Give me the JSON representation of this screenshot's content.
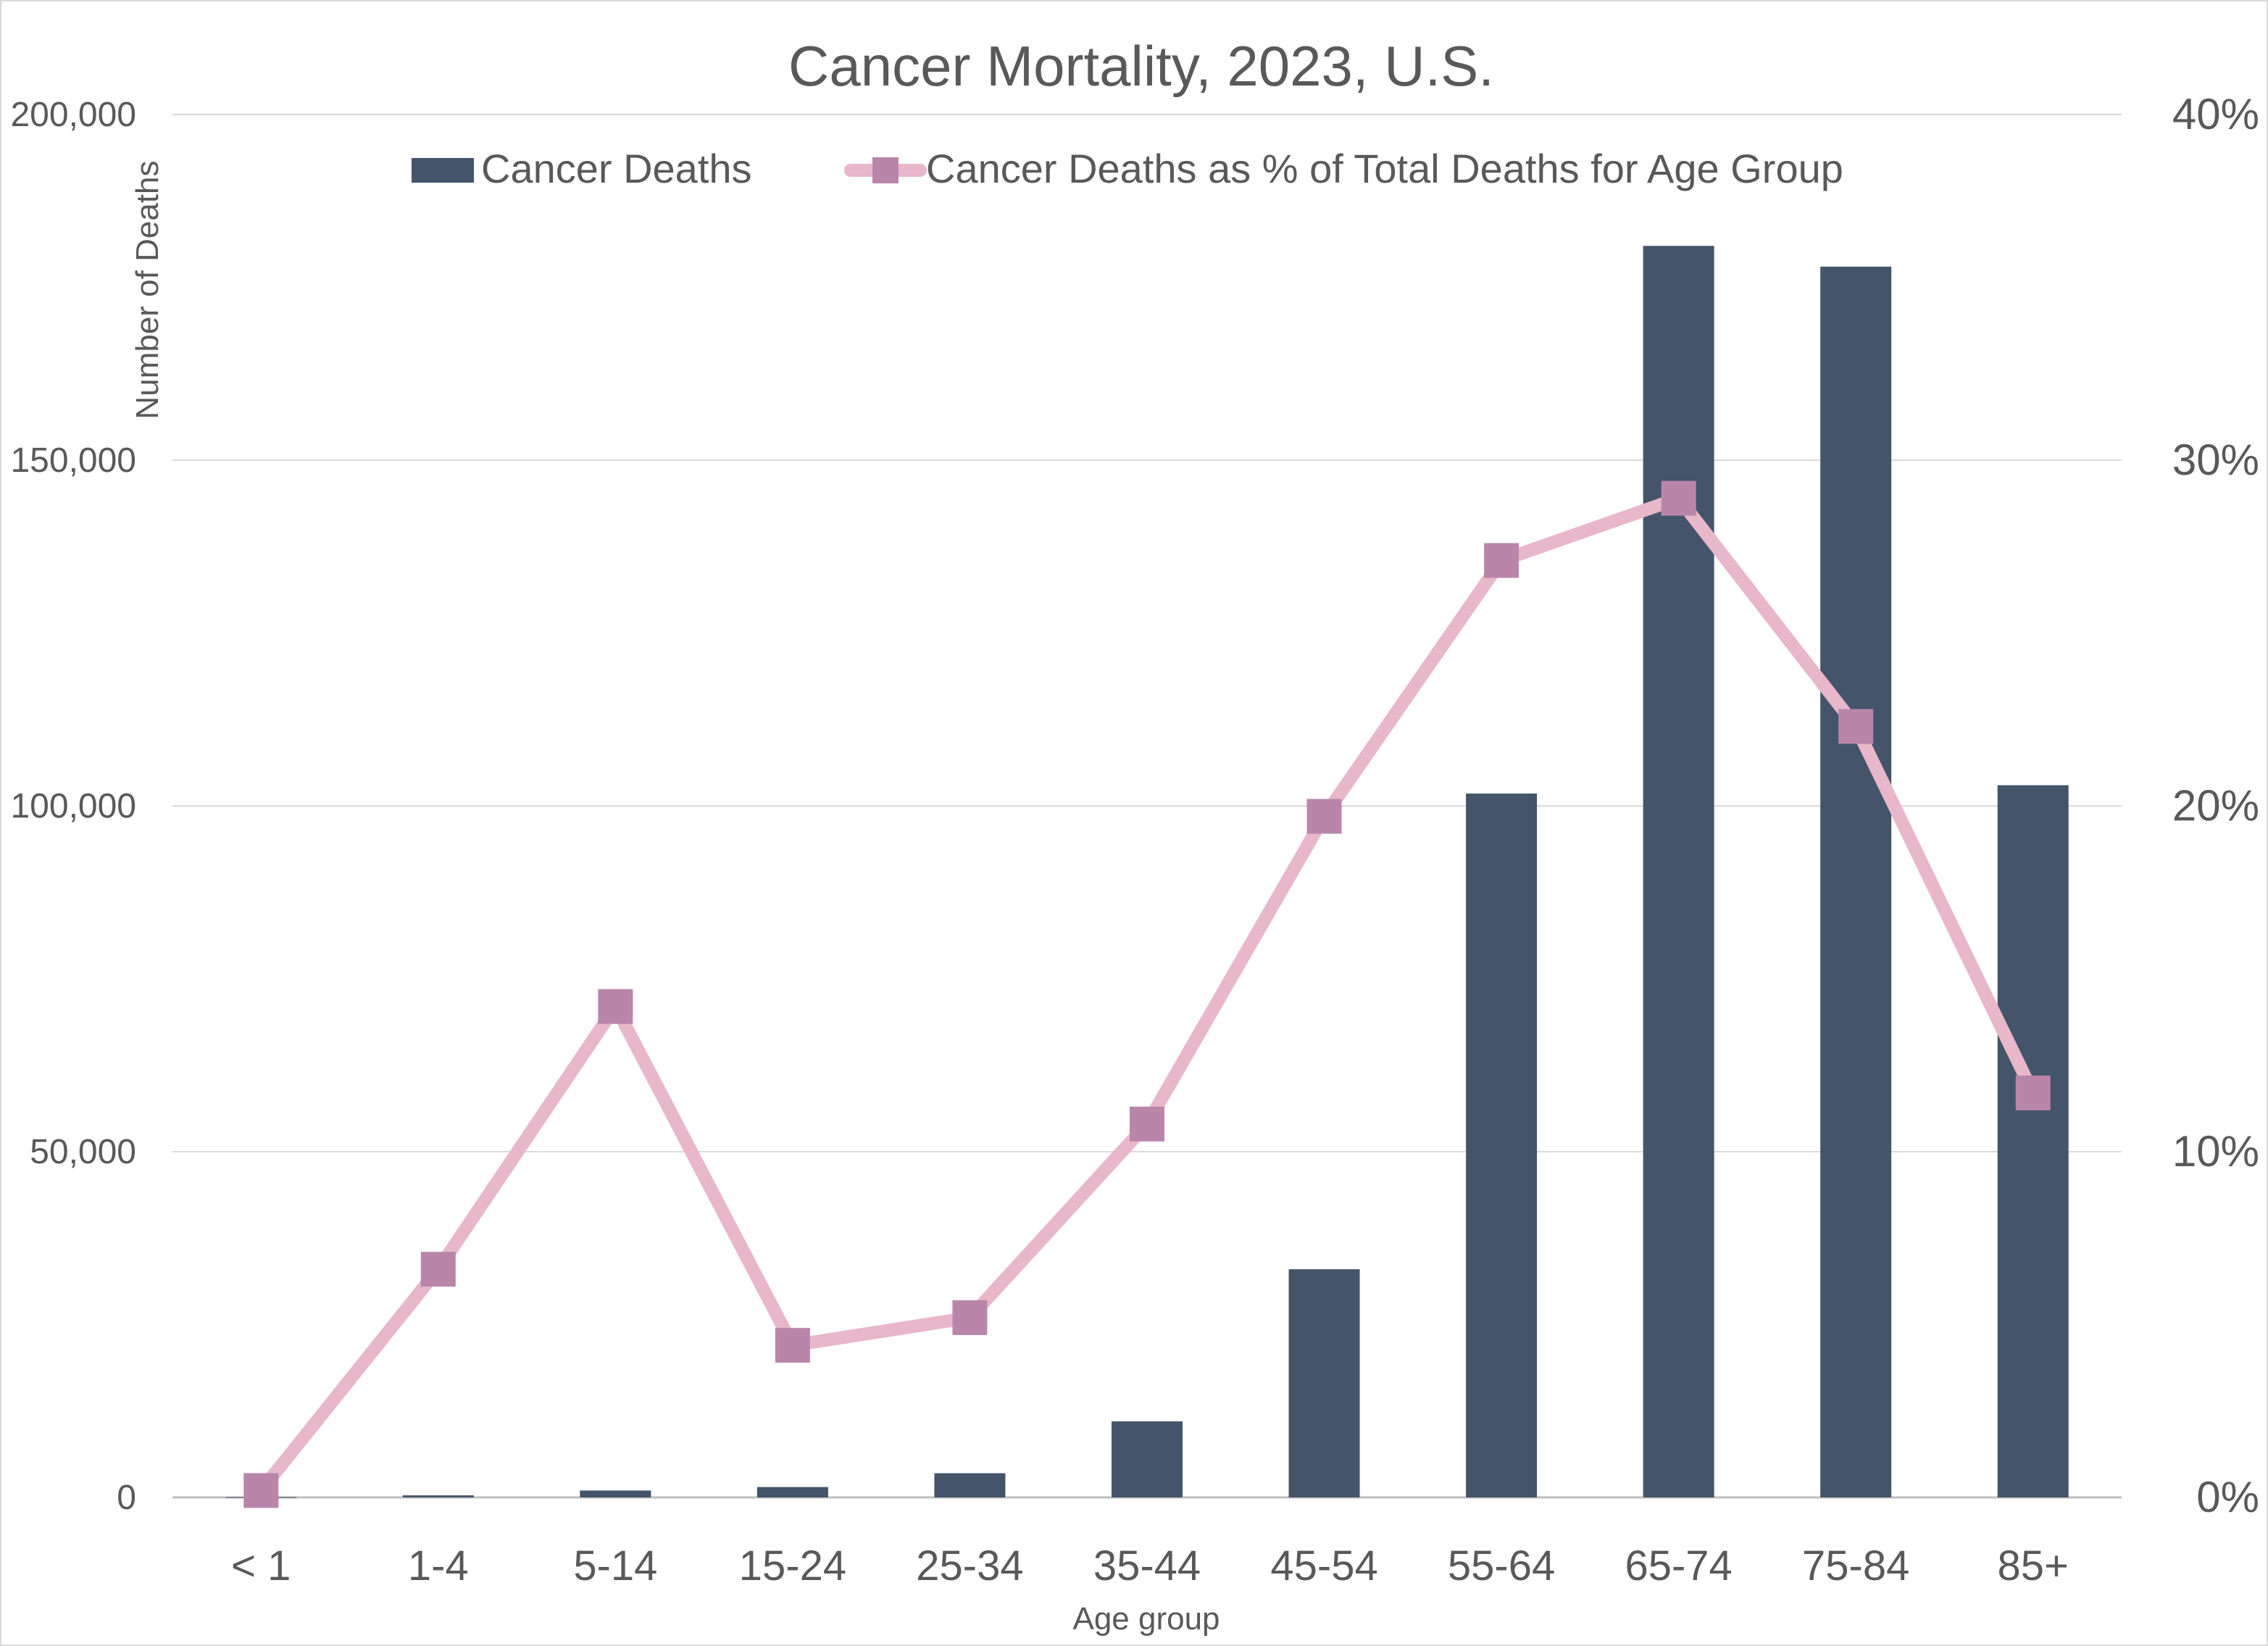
{
  "chart_data": {
    "type": "bar",
    "title": "Cancer Mortality, 2023, U.S.",
    "xlabel": "Age group",
    "ylabel": "Number of Deaths",
    "categories": [
      "< 1",
      "1-4",
      "5-14",
      "15-24",
      "25-34",
      "35-44",
      "45-54",
      "55-64",
      "65-74",
      "75-84",
      "85+"
    ],
    "y_axis": {
      "min": 0,
      "max": 200000,
      "ticks": [
        0,
        50000,
        100000,
        150000,
        200000
      ],
      "tick_labels": [
        "0",
        "50,000",
        "100,000",
        "150,000",
        "200,000"
      ]
    },
    "y2_axis": {
      "min": 0,
      "max": 40,
      "ticks": [
        0,
        10,
        20,
        30,
        40
      ],
      "tick_labels": [
        "0%",
        "10%",
        "20%",
        "30%",
        "40%"
      ]
    },
    "series": [
      {
        "name": "Cancer Deaths",
        "type": "bar",
        "axis": "left",
        "color": "#44546a",
        "values": [
          40,
          300,
          1000,
          1500,
          3500,
          11000,
          33000,
          101800,
          181000,
          178000,
          103000
        ]
      },
      {
        "name": "Cancer Deaths as % of Total Deaths for Age Group",
        "type": "line",
        "axis": "right",
        "line_color": "#e8b7c9",
        "marker_color": "#b986aa",
        "marker": "square",
        "values": [
          0.2,
          6.6,
          14.2,
          4.4,
          5.2,
          10.8,
          19.7,
          27.1,
          28.9,
          22.3,
          11.7
        ]
      }
    ],
    "grid": true,
    "legend": "top-center"
  }
}
